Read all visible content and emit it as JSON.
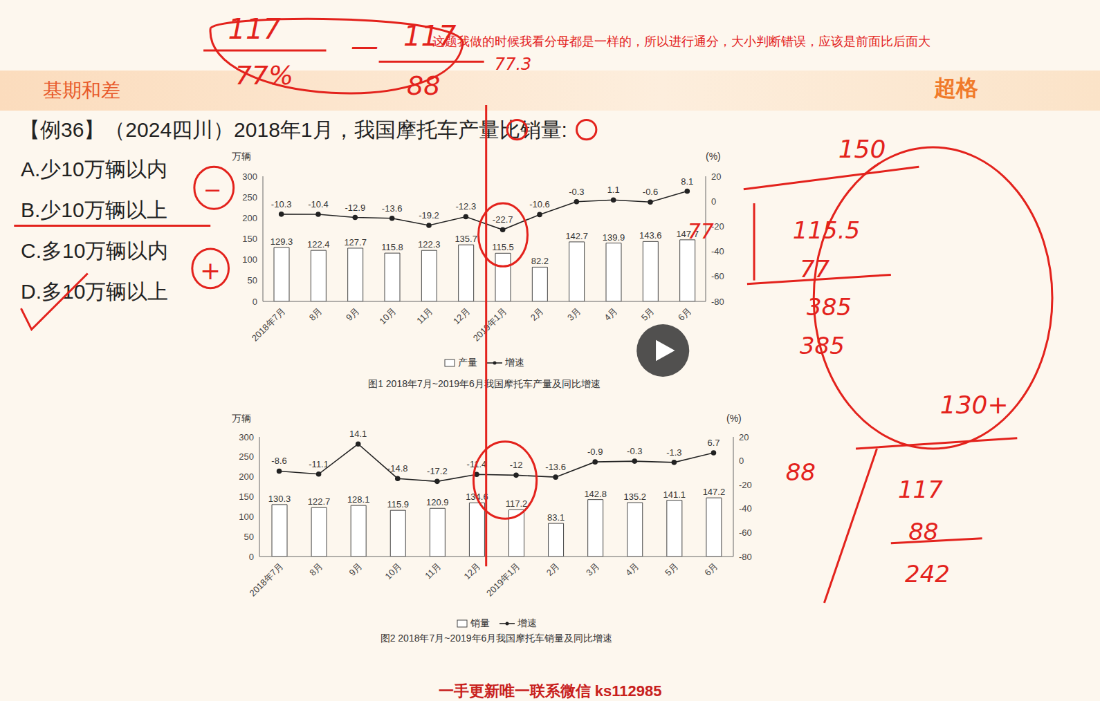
{
  "page": {
    "header": "基期和差",
    "logo": "超格",
    "question": "【例36】（2024四川）2018年1月，我国摩托车产量比销量:",
    "options": [
      "A.少10万辆以内",
      "B.少10万辆以上",
      "C.多10万辆以内",
      "D.多10万辆以上"
    ],
    "note": "这题我做的时候我看分母都是一样的，所以进行通分，大小判断错误，应该是前面比后面大",
    "footer": "一手更新唯一联系微信 ks112985",
    "annotations": [
      "117",
      "77%",
      "—",
      "117",
      "88",
      "77.3",
      "77",
      "150",
      "115.5",
      "77",
      "385",
      "385",
      "130+",
      "88",
      "117",
      "88",
      "242",
      "−",
      "+"
    ]
  },
  "chart_data": [
    {
      "type": "bar",
      "title": "图1  2018年7月~2019年6月我国摩托车产量及同比增速",
      "ylabel": "万辆",
      "y2label": "(%)",
      "categories": [
        "2018年7月",
        "8月",
        "9月",
        "10月",
        "11月",
        "12月",
        "2019年1月",
        "2月",
        "3月",
        "4月",
        "5月",
        "6月"
      ],
      "series": [
        {
          "name": "产量",
          "type": "bar",
          "color": "#ffffff",
          "values": [
            129.3,
            122.4,
            127.7,
            115.8,
            122.3,
            135.7,
            115.5,
            82.2,
            142.7,
            139.9,
            143.6,
            147.7
          ]
        },
        {
          "name": "增速",
          "type": "line",
          "color": "#222222",
          "axis": "y2",
          "marker": "circle",
          "values": [
            -10.3,
            -10.4,
            -12.9,
            -13.6,
            -19.2,
            -12.3,
            -22.7,
            -10.6,
            -0.3,
            1.1,
            -0.6,
            8.1
          ]
        }
      ],
      "ylim": [
        0,
        300
      ],
      "yticks": [
        0,
        50,
        100,
        150,
        200,
        250,
        300
      ],
      "y2lim": [
        -80,
        20
      ],
      "y2ticks": [
        -80,
        -60,
        -40,
        -20,
        0,
        20
      ],
      "data_labels": true,
      "legend": "bottom"
    },
    {
      "type": "bar",
      "title": "图2  2018年7月~2019年6月我国摩托车销量及同比增速",
      "ylabel": "万辆",
      "y2label": "(%)",
      "categories": [
        "2018年7月",
        "8月",
        "9月",
        "10月",
        "11月",
        "12月",
        "2019年1月",
        "2月",
        "3月",
        "4月",
        "5月",
        "6月"
      ],
      "series": [
        {
          "name": "销量",
          "type": "bar",
          "color": "#ffffff",
          "values": [
            130.3,
            122.7,
            128.1,
            115.9,
            120.9,
            134.6,
            117.2,
            83.1,
            142.8,
            135.2,
            141.1,
            147.2
          ]
        },
        {
          "name": "增速",
          "type": "line",
          "color": "#222222",
          "axis": "y2",
          "marker": "circle",
          "values": [
            -8.6,
            -11.1,
            14.1,
            -14.8,
            -17.2,
            -11.4,
            -12.0,
            -13.6,
            -0.9,
            -0.3,
            -1.3,
            6.7
          ]
        }
      ],
      "ylim": [
        0,
        300
      ],
      "yticks": [
        0,
        50,
        100,
        150,
        200,
        250,
        300
      ],
      "y2lim": [
        -80,
        20
      ],
      "y2ticks": [
        -80,
        -60,
        -40,
        -20,
        0,
        20
      ],
      "data_labels": true,
      "legend": "bottom"
    }
  ]
}
